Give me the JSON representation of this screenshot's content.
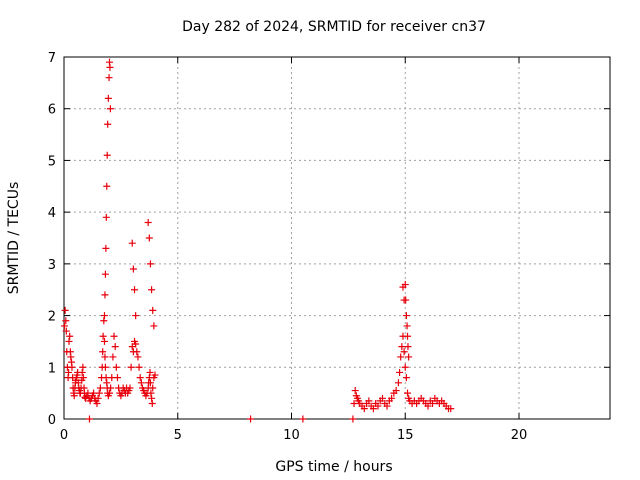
{
  "chart_data": {
    "type": "scatter",
    "title": "Day 282 of 2024, SRMTID for receiver cn37",
    "xlabel": "GPS time / hours",
    "ylabel": "SRMTID / TECUs",
    "xlim": [
      0,
      24
    ],
    "ylim": [
      0,
      7
    ],
    "x_ticks": [
      0,
      5,
      10,
      15,
      20
    ],
    "y_ticks": [
      0,
      1,
      2,
      3,
      4,
      5,
      6,
      7
    ],
    "grid": true,
    "marker": "+",
    "color": "#e8000b",
    "series": [
      {
        "name": "SRMTID",
        "x": [
          0.02,
          0.05,
          0.08,
          0.1,
          0.12,
          0.15,
          0.18,
          0.2,
          0.22,
          0.25,
          0.28,
          0.3,
          0.33,
          0.35,
          0.38,
          0.4,
          0.43,
          0.45,
          0.48,
          0.5,
          0.52,
          0.55,
          0.58,
          0.6,
          0.63,
          0.65,
          0.68,
          0.7,
          0.72,
          0.75,
          0.78,
          0.8,
          0.83,
          0.85,
          0.88,
          0.9,
          0.92,
          0.95,
          1.0,
          1.05,
          1.1,
          1.15,
          1.2,
          1.25,
          1.3,
          1.35,
          1.4,
          1.45,
          1.5,
          1.55,
          1.6,
          1.65,
          1.68,
          1.7,
          1.72,
          1.75,
          1.78,
          1.8,
          1.82,
          1.85,
          1.88,
          1.9,
          1.92,
          1.95,
          2.0,
          2.05,
          2.1,
          2.15,
          2.2,
          2.25,
          2.3,
          2.35,
          2.4,
          2.45,
          2.5,
          2.55,
          2.6,
          2.65,
          2.7,
          2.75,
          2.8,
          2.85,
          2.9,
          2.95,
          3.0,
          3.05,
          3.1,
          3.15,
          3.2,
          3.25,
          3.3,
          3.35,
          3.4,
          3.45,
          3.5,
          3.55,
          3.6,
          3.65,
          3.7,
          3.72,
          3.75,
          3.78,
          3.8,
          3.82,
          3.85,
          3.88,
          3.9,
          3.95,
          4.0,
          1.12,
          8.2,
          10.5,
          12.7,
          12.75,
          12.8,
          12.85,
          12.9,
          12.95,
          13.0,
          13.1,
          13.2,
          13.3,
          13.4,
          13.5,
          13.6,
          13.7,
          13.8,
          13.9,
          14.0,
          14.1,
          14.2,
          14.3,
          14.4,
          14.5,
          14.6,
          14.7,
          14.75,
          14.8,
          14.85,
          14.9,
          14.95,
          15.0,
          15.05,
          15.1,
          15.15,
          15.2,
          15.3,
          15.4,
          15.5,
          15.6,
          15.7,
          15.8,
          15.9,
          16.0,
          16.1,
          16.2,
          16.3,
          16.4,
          16.5,
          16.6,
          16.7,
          16.8,
          16.9,
          17.0,
          1.78,
          1.8,
          1.82,
          1.84,
          1.86,
          1.88,
          1.9,
          1.92,
          1.95,
          1.98,
          2.0,
          2.02,
          2.04,
          3.0,
          3.05,
          3.1,
          3.15,
          3.7,
          3.75,
          3.8,
          3.85,
          3.9,
          3.95,
          15.0,
          15.02,
          15.05,
          15.08,
          15.1,
          15.12,
          15.15,
          14.9,
          14.95
        ],
        "y": [
          1.8,
          2.1,
          1.9,
          1.7,
          1.3,
          1.0,
          0.8,
          0.9,
          1.5,
          1.6,
          1.3,
          1.2,
          1.1,
          1.0,
          0.8,
          0.6,
          0.5,
          0.45,
          0.6,
          0.7,
          0.75,
          0.8,
          0.85,
          0.9,
          0.7,
          0.6,
          0.55,
          0.5,
          0.5,
          0.6,
          0.75,
          0.9,
          1.0,
          0.8,
          0.6,
          0.5,
          0.42,
          0.4,
          0.45,
          0.5,
          0.4,
          0.35,
          0.4,
          0.45,
          0.5,
          0.4,
          0.35,
          0.3,
          0.4,
          0.5,
          0.6,
          0.8,
          1.0,
          1.3,
          1.6,
          1.9,
          1.5,
          1.2,
          1.0,
          0.8,
          0.7,
          0.6,
          0.5,
          0.45,
          0.5,
          0.6,
          0.8,
          1.2,
          1.6,
          1.4,
          1.0,
          0.8,
          0.6,
          0.5,
          0.45,
          0.5,
          0.6,
          0.55,
          0.5,
          0.6,
          0.5,
          0.55,
          0.6,
          1.0,
          1.4,
          1.3,
          1.5,
          1.45,
          1.3,
          1.2,
          1.0,
          0.8,
          0.7,
          0.6,
          0.55,
          0.5,
          0.45,
          0.5,
          0.6,
          0.7,
          0.8,
          0.9,
          0.7,
          0.5,
          0.4,
          0.3,
          0.6,
          0.8,
          0.85,
          0.0,
          0.0,
          0.0,
          0.0,
          0.3,
          0.55,
          0.45,
          0.4,
          0.35,
          0.3,
          0.25,
          0.2,
          0.3,
          0.35,
          0.25,
          0.2,
          0.3,
          0.25,
          0.35,
          0.4,
          0.3,
          0.25,
          0.35,
          0.4,
          0.5,
          0.55,
          0.7,
          0.9,
          1.2,
          1.4,
          1.6,
          1.3,
          1.0,
          0.8,
          0.5,
          0.4,
          0.35,
          0.3,
          0.35,
          0.3,
          0.35,
          0.4,
          0.35,
          0.3,
          0.25,
          0.35,
          0.3,
          0.4,
          0.35,
          0.3,
          0.35,
          0.3,
          0.25,
          0.2,
          0.2,
          2.0,
          2.4,
          2.8,
          3.3,
          3.9,
          4.5,
          5.1,
          5.7,
          6.2,
          6.6,
          6.9,
          6.8,
          6.0,
          3.4,
          2.9,
          2.5,
          2.0,
          3.8,
          3.5,
          3.0,
          2.5,
          2.1,
          1.8,
          2.6,
          2.3,
          2.0,
          1.8,
          1.6,
          1.4,
          1.2,
          2.55,
          2.3
        ]
      }
    ]
  }
}
